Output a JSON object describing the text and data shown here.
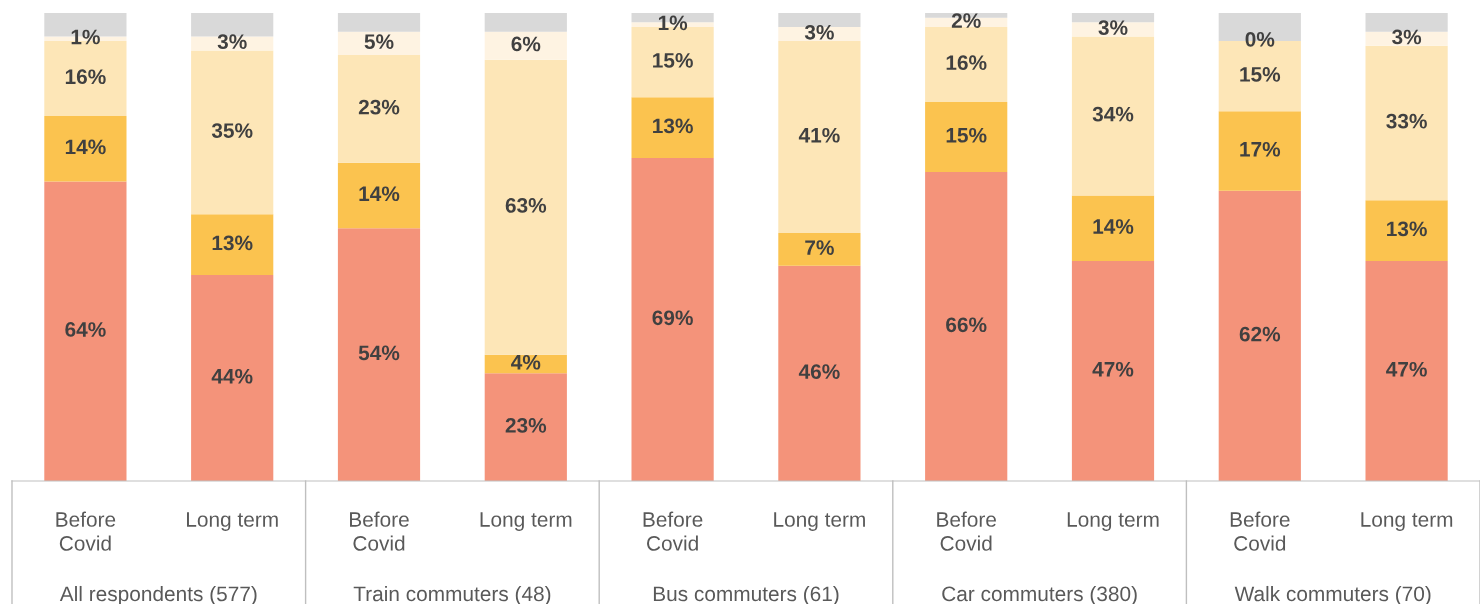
{
  "chart_data": {
    "type": "bar",
    "stacked": true,
    "categories": [
      "Before\nCovid",
      "Long term",
      "Before\nCovid",
      "Long term",
      "Before\nCovid",
      "Long term",
      "Before\nCovid",
      "Long term",
      "Before\nCovid",
      "Long term"
    ],
    "annotations": [
      "All respondents (577)",
      "Train commuters (48)",
      "Bus commuters (61)",
      "Car commuters (380)",
      "Walk commuters (70)"
    ],
    "ylim": [
      0,
      100
    ],
    "tick_labels": "x",
    "grid": false,
    "legend": false,
    "series": [
      {
        "color": "#f4937a",
        "values": [
          64,
          44,
          54,
          23,
          69,
          46,
          66,
          47,
          62,
          47
        ],
        "value_labels": [
          "64%",
          "44%",
          "54%",
          "23%",
          "69%",
          "46%",
          "66%",
          "47%",
          "62%",
          "47%"
        ]
      },
      {
        "color": "#fbc34f",
        "values": [
          14,
          13,
          14,
          4,
          13,
          7,
          15,
          14,
          17,
          13
        ],
        "value_labels": [
          "14%",
          "13%",
          "14%",
          "4%",
          "13%",
          "7%",
          "15%",
          "14%",
          "17%",
          "13%"
        ]
      },
      {
        "color": "#fde6b7",
        "values": [
          16,
          35,
          23,
          63,
          15,
          41,
          16,
          34,
          15,
          33
        ],
        "value_labels": [
          "16%",
          "35%",
          "23%",
          "63%",
          "15%",
          "41%",
          "16%",
          "34%",
          "15%",
          "33%"
        ]
      },
      {
        "color": "#fef3e2",
        "values": [
          1,
          3,
          5,
          6,
          1,
          3,
          2,
          3,
          0,
          3
        ],
        "value_labels": [
          "1%",
          "3%",
          "5%",
          "6%",
          "1%",
          "3%",
          "2%",
          "3%",
          "0%",
          "3%"
        ]
      },
      {
        "color": "#d9d9d9",
        "values": [
          5,
          5,
          4,
          4,
          2,
          3,
          1,
          2,
          6,
          4
        ],
        "value_labels": [
          null,
          null,
          null,
          null,
          null,
          null,
          null,
          null,
          null,
          null
        ]
      }
    ]
  }
}
